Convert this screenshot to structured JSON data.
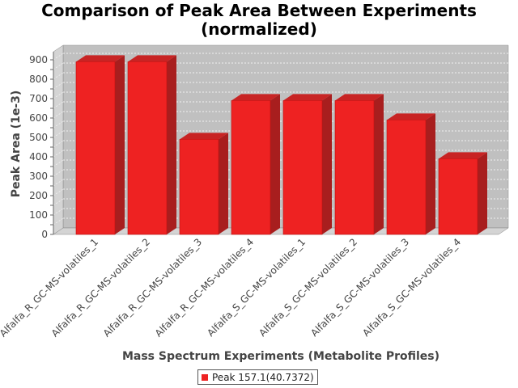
{
  "chart_data": {
    "type": "bar",
    "title_line1": "Comparison of Peak Area Between Experiments",
    "title_line2": "(normalized)",
    "xlabel": "Mass Spectrum Experiments (Metabolite Profiles)",
    "ylabel": "Peak Area (1e-3)",
    "categories": [
      "Alfalfa_R_GC-MS-volatiles_1",
      "Alfalfa_R_GC-MS-volatiles_2",
      "Alfalfa_R_GC-MS-volatiles_3",
      "Alfalfa_R_GC-MS-volatiles_4",
      "Alfalfa_S_GC-MS-volatiles_1",
      "Alfalfa_S_GC-MS-volatiles_2",
      "Alfalfa_S_GC-MS-volatiles_3",
      "Alfalfa_S_GC-MS-volatiles_4"
    ],
    "series": [
      {
        "name": "Peak 157.1(40.7372)",
        "values": [
          890,
          890,
          490,
          690,
          690,
          690,
          590,
          390
        ]
      }
    ],
    "ylim": [
      0,
      900
    ],
    "yticks": [
      0,
      50,
      100,
      150,
      200,
      250,
      300,
      350,
      400,
      450,
      500,
      550,
      600,
      650,
      700,
      750,
      800,
      850,
      900
    ],
    "yticks_labeled": [
      "0",
      "100",
      "200",
      "300",
      "400",
      "500",
      "600",
      "700",
      "800",
      "900"
    ],
    "grid": true,
    "legend_position": "bottom",
    "bar_color": "#ee2222",
    "plot_background": "#c0c0c0"
  }
}
